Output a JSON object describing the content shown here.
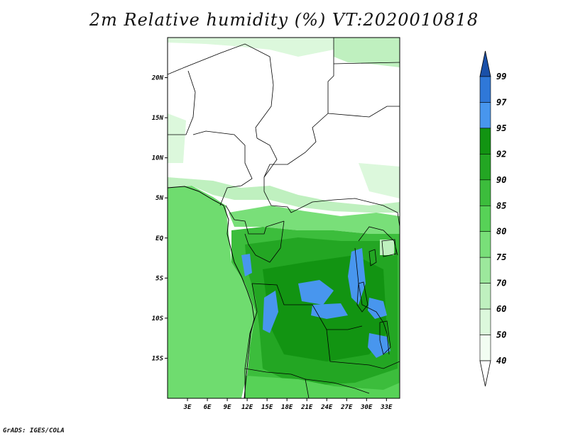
{
  "title": "2m Relative humidity (%) VT:2020010818",
  "credit": "GrADS: IGES/COLA",
  "map": {
    "lon_range": [
      0,
      35
    ],
    "lat_range": [
      -20,
      25
    ],
    "lon_ticks": [
      {
        "lon": 3,
        "label": "3E"
      },
      {
        "lon": 6,
        "label": "6E"
      },
      {
        "lon": 9,
        "label": "9E"
      },
      {
        "lon": 12,
        "label": "12E"
      },
      {
        "lon": 15,
        "label": "15E"
      },
      {
        "lon": 18,
        "label": "18E"
      },
      {
        "lon": 21,
        "label": "21E"
      },
      {
        "lon": 24,
        "label": "24E"
      },
      {
        "lon": 27,
        "label": "27E"
      },
      {
        "lon": 30,
        "label": "30E"
      },
      {
        "lon": 33,
        "label": "33E"
      }
    ],
    "lat_ticks": [
      {
        "lat": 20,
        "label": "20N"
      },
      {
        "lat": 15,
        "label": "15N"
      },
      {
        "lat": 10,
        "label": "10N"
      },
      {
        "lat": 5,
        "label": "5N"
      },
      {
        "lat": 0,
        "label": "EQ"
      },
      {
        "lat": -5,
        "label": "5S"
      },
      {
        "lat": -10,
        "label": "10S"
      },
      {
        "lat": -15,
        "label": "15S"
      }
    ]
  },
  "colorbar": {
    "levels": [
      {
        "value": "99",
        "color": "#1f5fbf"
      },
      {
        "value": "97",
        "color": "#2f78d8"
      },
      {
        "value": "95",
        "color": "#4896ee"
      },
      {
        "value": "92",
        "color": "#129412"
      },
      {
        "value": "90",
        "color": "#23a623"
      },
      {
        "value": "85",
        "color": "#3cbd3c"
      },
      {
        "value": "80",
        "color": "#57d257"
      },
      {
        "value": "75",
        "color": "#79df79"
      },
      {
        "value": "70",
        "color": "#9ce89c"
      },
      {
        "value": "60",
        "color": "#bff0bf"
      },
      {
        "value": "50",
        "color": "#dcf8dc"
      },
      {
        "value": "40",
        "color": "#f2fdf2"
      }
    ],
    "top_color": "#1a50a8",
    "bottom_color": "#ffffff"
  }
}
